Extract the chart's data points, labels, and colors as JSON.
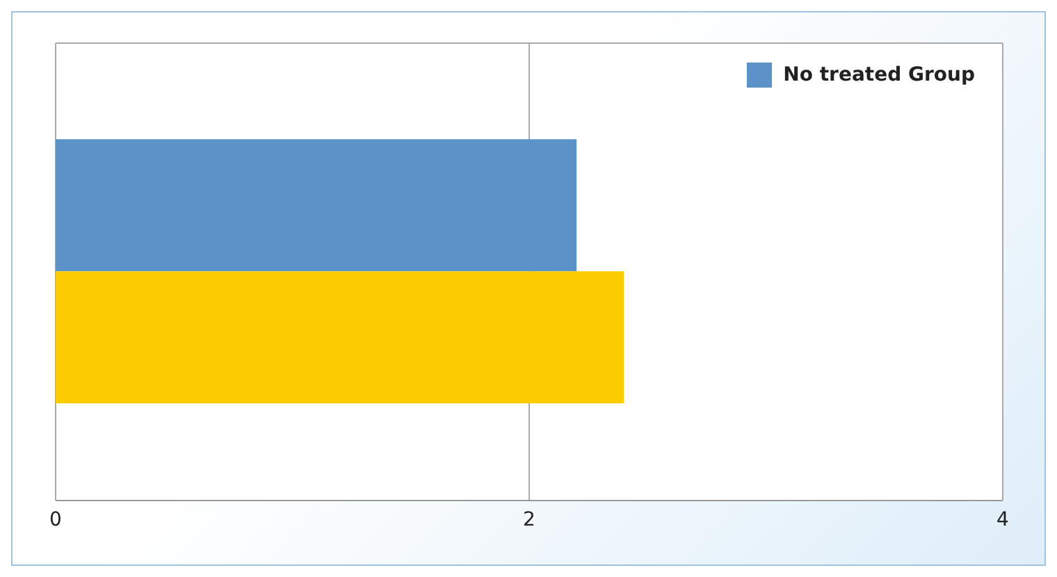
{
  "chart_data": {
    "type": "bar",
    "orientation": "horizontal",
    "categories": [
      null
    ],
    "series": [
      {
        "name": "No treated Group",
        "color": "#5b93c9",
        "values": [
          2.2
        ]
      },
      {
        "color": "#fccc00",
        "values": [
          2.4
        ]
      }
    ],
    "xlim": [
      0,
      4
    ],
    "xticks": [
      0,
      2,
      4
    ],
    "grid": "x",
    "legend": "top right"
  }
}
